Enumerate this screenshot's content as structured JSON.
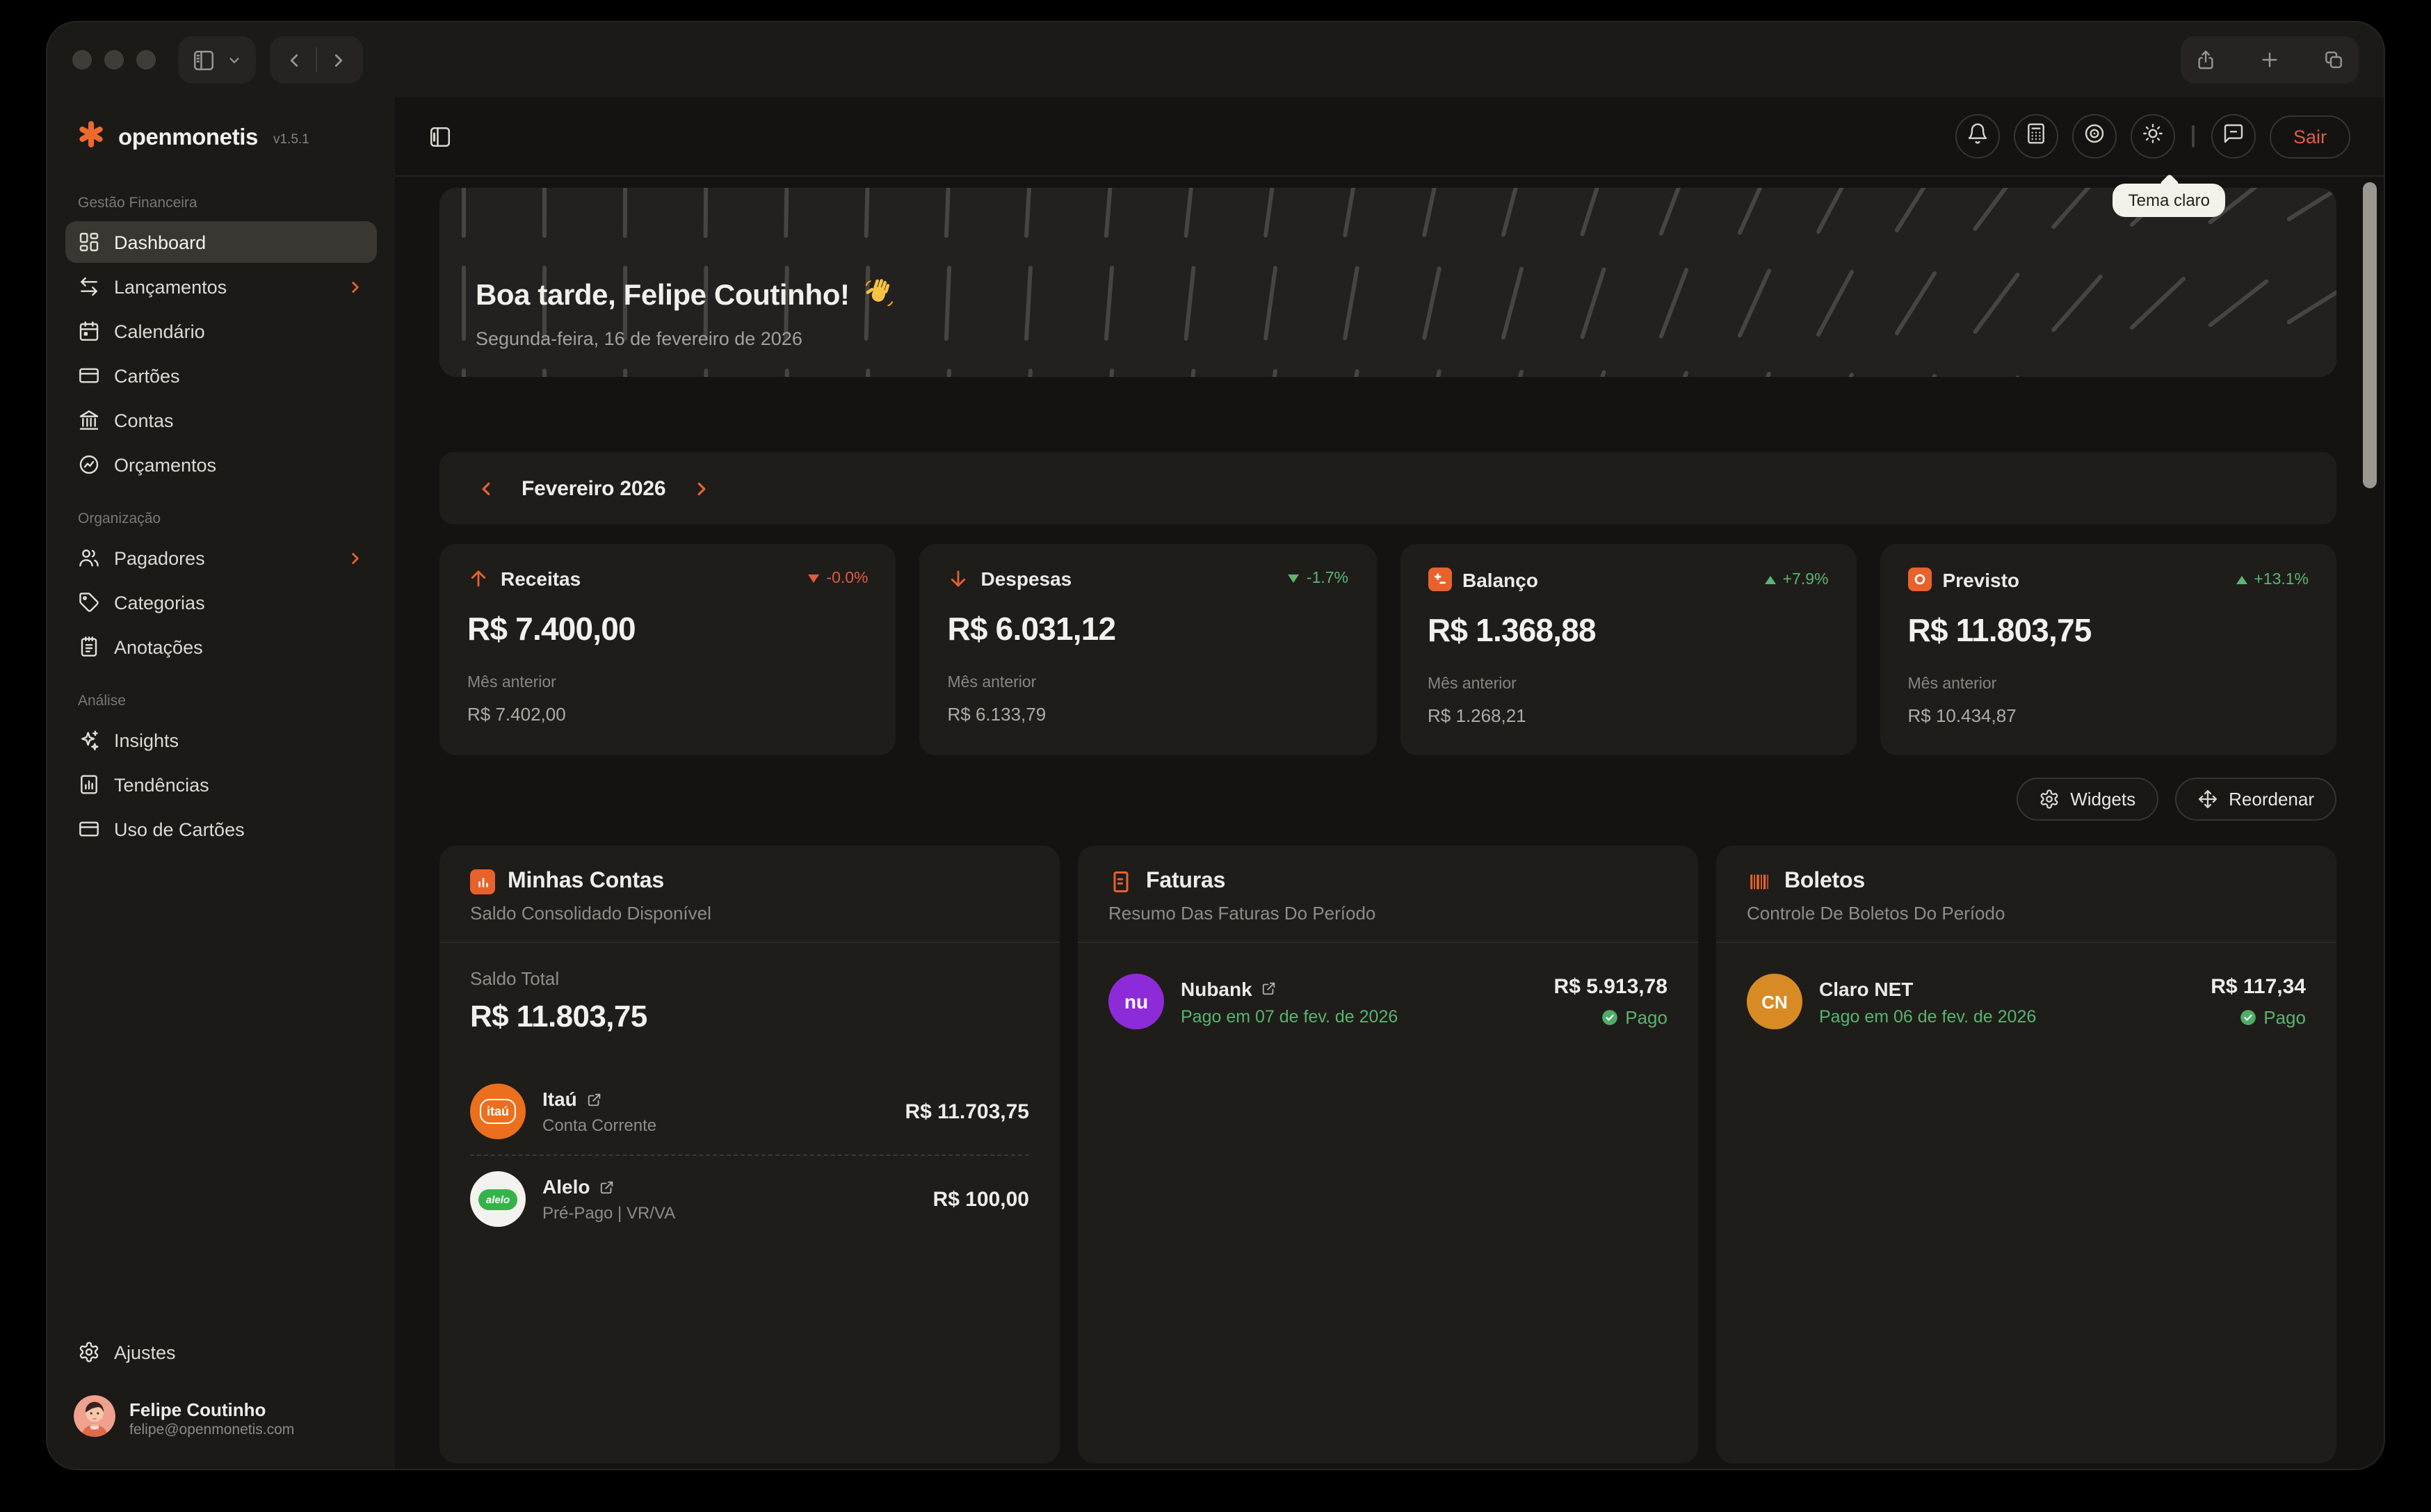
{
  "sidebar": {
    "brand": "openmonetis",
    "version": "v1.5.1",
    "sections": [
      {
        "label": "Gestão Financeira",
        "items": [
          {
            "slug": "dashboard",
            "label": "Dashboard",
            "icon": "dashboard",
            "active": true
          },
          {
            "slug": "lancamentos",
            "label": "Lançamentos",
            "icon": "transactions",
            "chevron": true
          },
          {
            "slug": "calendario",
            "label": "Calendário",
            "icon": "calendar"
          },
          {
            "slug": "cartoes",
            "label": "Cartões",
            "icon": "credit-card"
          },
          {
            "slug": "contas",
            "label": "Contas",
            "icon": "bank"
          },
          {
            "slug": "orcamentos",
            "label": "Orçamentos",
            "icon": "budget"
          }
        ]
      },
      {
        "label": "Organização",
        "items": [
          {
            "slug": "pagadores",
            "label": "Pagadores",
            "icon": "users",
            "chevron": true
          },
          {
            "slug": "categorias",
            "label": "Categorias",
            "icon": "tag"
          },
          {
            "slug": "anotacoes",
            "label": "Anotações",
            "icon": "notes"
          }
        ]
      },
      {
        "label": "Análise",
        "items": [
          {
            "slug": "insights",
            "label": "Insights",
            "icon": "sparkles"
          },
          {
            "slug": "tendencias",
            "label": "Tendências",
            "icon": "trends"
          },
          {
            "slug": "uso-de-cartoes",
            "label": "Uso de Cartões",
            "icon": "credit-card"
          }
        ]
      }
    ],
    "settings_label": "Ajustes",
    "user": {
      "name": "Felipe Coutinho",
      "email": "felipe@openmonetis.com"
    }
  },
  "header": {
    "logout_label": "Sair",
    "theme_tooltip": "Tema claro"
  },
  "banner": {
    "greeting": "Boa tarde, Felipe Coutinho!",
    "date": "Segunda-feira, 16 de fevereiro de 2026"
  },
  "month_selector": {
    "label": "Fevereiro 2026"
  },
  "stats": [
    {
      "title": "Receitas",
      "value": "R$ 7.400,00",
      "delta": "-0.0%",
      "delta_direction": "down",
      "delta_tone": "negative",
      "prev_label": "Mês anterior",
      "prev_value": "R$ 7.402,00"
    },
    {
      "title": "Despesas",
      "value": "R$ 6.031,12",
      "delta": "-1.7%",
      "delta_direction": "down",
      "delta_tone": "positive",
      "prev_label": "Mês anterior",
      "prev_value": "R$ 6.133,79"
    },
    {
      "title": "Balanço",
      "value": "R$ 1.368,88",
      "delta": "+7.9%",
      "delta_direction": "up",
      "delta_tone": "positive",
      "prev_label": "Mês anterior",
      "prev_value": "R$ 1.268,21"
    },
    {
      "title": "Previsto",
      "value": "R$ 11.803,75",
      "delta": "+13.1%",
      "delta_direction": "up",
      "delta_tone": "positive",
      "prev_label": "Mês anterior",
      "prev_value": "R$ 10.434,87"
    }
  ],
  "toolbar": {
    "widgets_label": "Widgets",
    "reorder_label": "Reordenar"
  },
  "widgets": {
    "accounts": {
      "title": "Minhas Contas",
      "subtitle": "Saldo Consolidado Disponível",
      "total_label": "Saldo Total",
      "total_value": "R$ 11.803,75",
      "rows": [
        {
          "name": "Itaú",
          "detail": "Conta Corrente",
          "value": "R$ 11.703,75"
        },
        {
          "name": "Alelo",
          "detail": "Pré-Pago | VR/VA",
          "value": "R$ 100,00"
        }
      ]
    },
    "invoices": {
      "title": "Faturas",
      "subtitle": "Resumo Das Faturas Do Período",
      "rows": [
        {
          "name": "Nubank",
          "status_date": "Pago em 07 de fev. de 2026",
          "value": "R$ 5.913,78",
          "status": "Pago"
        }
      ]
    },
    "bills": {
      "title": "Boletos",
      "subtitle": "Controle De Boletos Do Período",
      "rows": [
        {
          "name": "Claro NET",
          "initials": "CN",
          "status_date": "Pago em 06 de fev. de 2026",
          "value": "R$ 117,34",
          "status": "Pago"
        }
      ]
    }
  },
  "logos": {
    "itau": "itaú",
    "alelo": "alelo",
    "nubank": "nu"
  },
  "colors": {
    "accent": "#e8622c",
    "positive": "#5cb571",
    "negative": "#e25a45",
    "tooltip_bg": "#f3f1e9"
  }
}
